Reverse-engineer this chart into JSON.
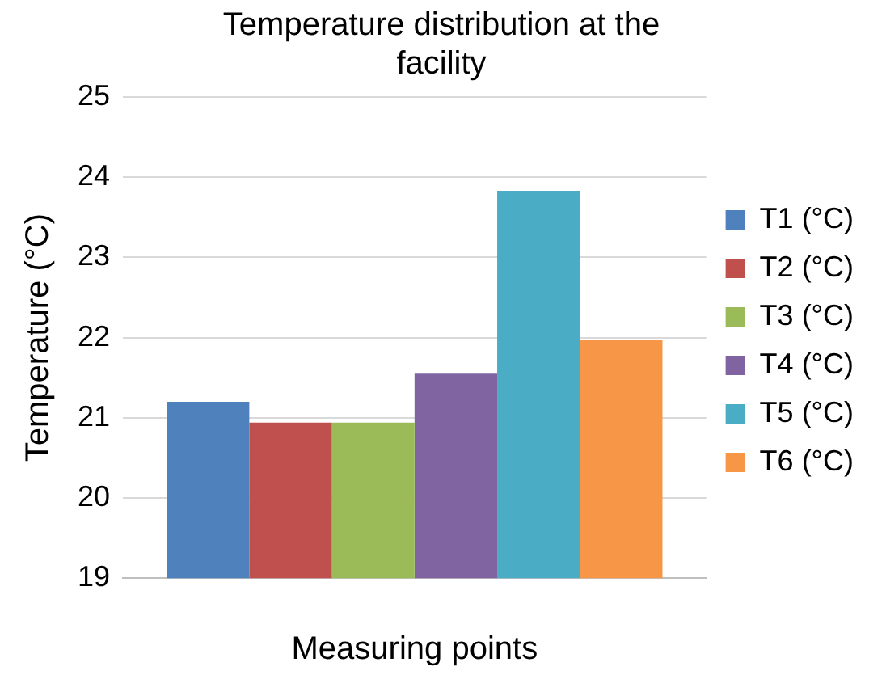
{
  "chart_data": {
    "type": "bar",
    "title": "Temperature distribution at the facility",
    "xlabel": "Measuring points",
    "ylabel": "Temperature (°C)",
    "categories": [
      null
    ],
    "series": [
      {
        "name": "T1 (°C)",
        "color": "#4f81bd",
        "values": [
          21.2
        ]
      },
      {
        "name": "T2 (°C)",
        "color": "#c0504d",
        "values": [
          20.94
        ]
      },
      {
        "name": "T3 (°C)",
        "color": "#9bbb59",
        "values": [
          20.94
        ]
      },
      {
        "name": "T4 (°C)",
        "color": "#8064a2",
        "values": [
          21.55
        ]
      },
      {
        "name": "T5 (°C)",
        "color": "#4bacc6",
        "values": [
          23.83
        ]
      },
      {
        "name": "T6 (°C)",
        "color": "#f79646",
        "values": [
          21.97
        ]
      }
    ],
    "ylim": [
      19,
      25
    ],
    "yticks": [
      19,
      20,
      21,
      22,
      23,
      24,
      25
    ],
    "grid": "y",
    "legend": "right"
  }
}
